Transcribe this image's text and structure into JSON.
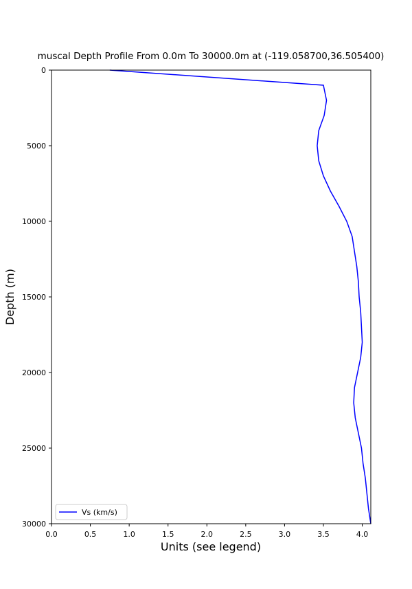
{
  "chart_data": {
    "type": "line",
    "title": "muscal Depth Profile From 0.0m To 30000.0m at (-119.058700,36.505400)",
    "xlabel": "Units (see legend)",
    "ylabel": "Depth (m)",
    "xlim": [
      0,
      4.11
    ],
    "ylim": [
      30000,
      0
    ],
    "y_inverted": true,
    "grid": false,
    "legend_position": "bottom-left",
    "xticks": [
      "0.0",
      "0.5",
      "1.0",
      "1.5",
      "2.0",
      "2.5",
      "3.0",
      "3.5",
      "4.0"
    ],
    "yticks": [
      "0",
      "5000",
      "10000",
      "15000",
      "20000",
      "25000",
      "30000"
    ],
    "series": [
      {
        "name": "Vs (km/s)",
        "color": "#0000ff",
        "depth": [
          0,
          1000,
          2000,
          3000,
          4000,
          5000,
          6000,
          7000,
          8000,
          9000,
          10000,
          11000,
          12000,
          13000,
          14000,
          15000,
          16000,
          17000,
          18000,
          19000,
          20000,
          21000,
          22000,
          23000,
          24000,
          25000,
          26000,
          27000,
          28000,
          29000,
          30000
        ],
        "values": [
          0.75,
          3.5,
          3.54,
          3.51,
          3.44,
          3.42,
          3.44,
          3.5,
          3.59,
          3.7,
          3.8,
          3.87,
          3.9,
          3.93,
          3.95,
          3.96,
          3.98,
          3.99,
          4.0,
          3.98,
          3.94,
          3.9,
          3.89,
          3.91,
          3.95,
          3.99,
          4.01,
          4.04,
          4.06,
          4.08,
          4.11
        ]
      }
    ]
  }
}
